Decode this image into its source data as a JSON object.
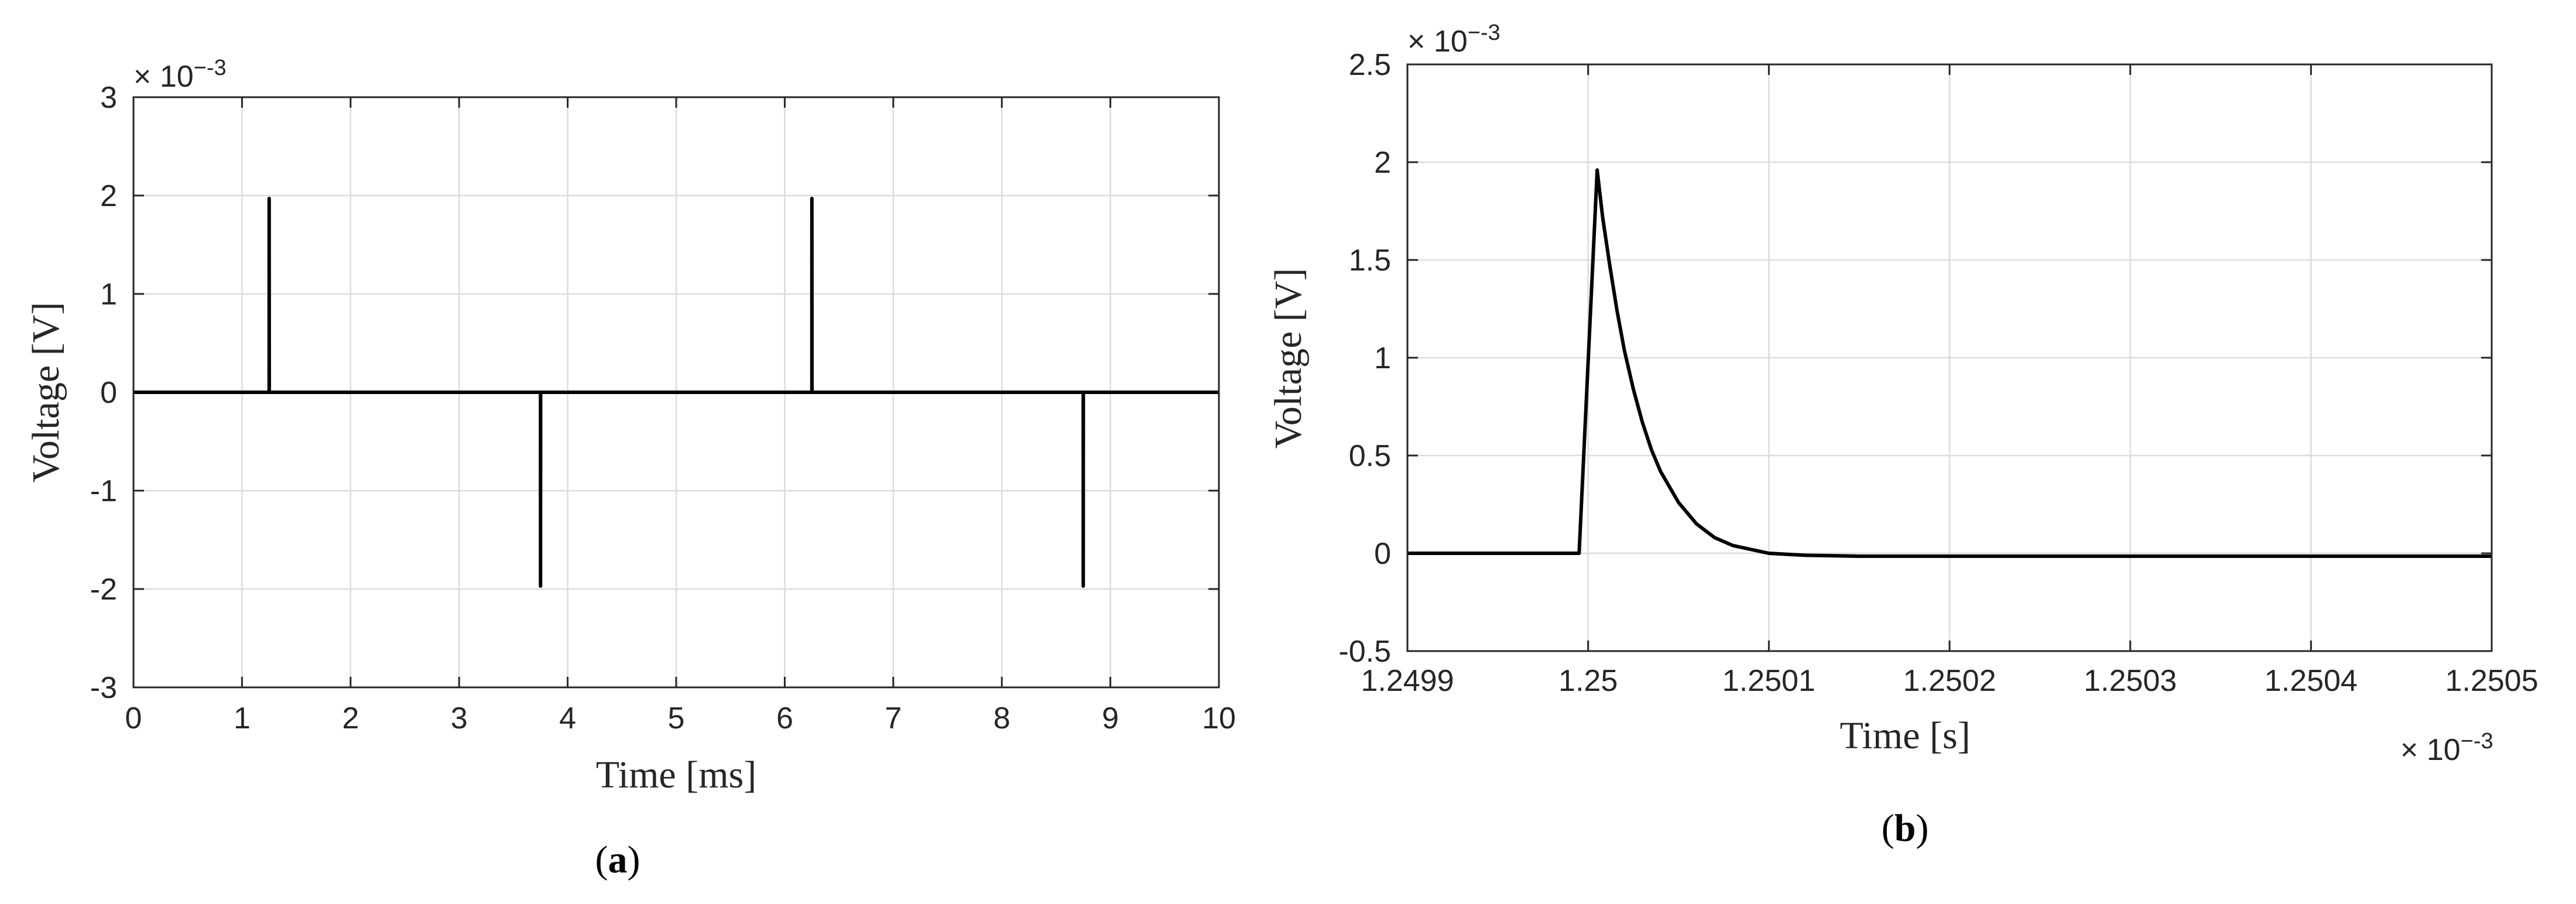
{
  "chart_data": [
    {
      "type": "line",
      "panel_label": "a",
      "xlabel": "Time [ms]",
      "ylabel": "Voltage [V]",
      "y_exponent": "-3",
      "xlim": [
        0,
        10
      ],
      "ylim": [
        -3,
        3
      ],
      "xticks": [
        0,
        1,
        2,
        3,
        4,
        5,
        6,
        7,
        8,
        9,
        10
      ],
      "yticks": [
        -3,
        -2,
        -1,
        0,
        1,
        2,
        3
      ],
      "grid": true,
      "series": [
        {
          "color": "#000000",
          "x": [
            0,
            1.25,
            1.25,
            1.251,
            3.75,
            3.75,
            3.751,
            6.25,
            6.25,
            6.251,
            8.75,
            8.75,
            8.751,
            10
          ],
          "y": [
            0,
            0,
            1.97,
            0,
            0,
            -1.97,
            0,
            0,
            1.97,
            0,
            0,
            -1.97,
            0,
            0
          ]
        }
      ]
    },
    {
      "type": "line",
      "panel_label": "b",
      "xlabel": "Time [s]",
      "ylabel": "Voltage [V]",
      "x_exponent": "-3",
      "y_exponent": "-3",
      "xlim": [
        1.2499,
        1.2505
      ],
      "ylim": [
        -0.5,
        2.5
      ],
      "xticks": [
        1.2499,
        1.25,
        1.2501,
        1.2502,
        1.2503,
        1.2504,
        1.2505
      ],
      "xtick_labels": [
        "1.2499",
        "1.25",
        "1.2501",
        "1.2502",
        "1.2503",
        "1.2504",
        "1.2505"
      ],
      "yticks": [
        -0.5,
        0,
        0.5,
        1,
        1.5,
        2,
        2.5
      ],
      "ytick_labels": [
        "-0.5",
        "0",
        "0.5",
        "1",
        "1.5",
        "2",
        "2.5"
      ],
      "grid": true,
      "series": [
        {
          "color": "#000000",
          "x": [
            1.2499,
            1.249995,
            1.250005,
            1.250008,
            1.250012,
            1.250016,
            1.25002,
            1.250025,
            1.25003,
            1.250035,
            1.25004,
            1.25005,
            1.25006,
            1.25007,
            1.25008,
            1.2501,
            1.25012,
            1.25015,
            1.2502,
            1.2503,
            1.2504,
            1.2505
          ],
          "y": [
            0,
            0,
            1.96,
            1.72,
            1.47,
            1.24,
            1.04,
            0.84,
            0.67,
            0.53,
            0.42,
            0.26,
            0.15,
            0.08,
            0.04,
            0.0,
            -0.01,
            -0.015,
            -0.015,
            -0.015,
            -0.015,
            -0.015
          ]
        }
      ]
    }
  ]
}
